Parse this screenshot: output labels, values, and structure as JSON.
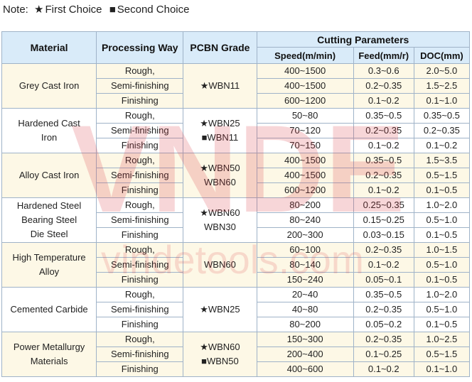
{
  "legend": {
    "prefix": "Note:",
    "first_symbol": "★",
    "first_label": "First Choice",
    "second_symbol": "■",
    "second_label": "Second Choice"
  },
  "watermark": {
    "logo_text": "VNDE",
    "url_text": "vindetools.com",
    "color": "#d9343a"
  },
  "table": {
    "headers": {
      "material": "Material",
      "processing": "Processing Way",
      "grade": "PCBN Grade",
      "cutting": "Cutting Parameters",
      "speed": "Speed(m/min)",
      "feed": "Feed(mm/r)",
      "doc": "DOC(mm)"
    },
    "groups": [
      {
        "material": [
          "Grey Cast Iron"
        ],
        "grades": [
          "★WBN11"
        ],
        "rows": [
          {
            "proc": "Rough,",
            "speed": "400~1500",
            "feed": "0.3~0.6",
            "doc": "2.0~5.0"
          },
          {
            "proc": "Semi-finishing",
            "speed": "400~1500",
            "feed": "0.2~0.35",
            "doc": "1.5~2.5"
          },
          {
            "proc": "Finishing",
            "speed": "600~1200",
            "feed": "0.1~0.2",
            "doc": "0.1~1.0"
          }
        ]
      },
      {
        "material": [
          "Hardened Cast",
          "Iron"
        ],
        "grades": [
          "★WBN25",
          "■WBN11"
        ],
        "rows": [
          {
            "proc": "Rough,",
            "speed": "50~80",
            "feed": "0.35~0.5",
            "doc": "0.35~0.5"
          },
          {
            "proc": "Semi-finishing",
            "speed": "70~120",
            "feed": "0.2~0.35",
            "doc": "0.2~0.35"
          },
          {
            "proc": "Finishing",
            "speed": "70~150",
            "feed": "0.1~0.2",
            "doc": "0.1~0.2"
          }
        ]
      },
      {
        "material": [
          "Alloy Cast Iron"
        ],
        "grades": [
          "★WBN50",
          "WBN60"
        ],
        "rows": [
          {
            "proc": "Rough,",
            "speed": "400~1500",
            "feed": "0.35~0.5",
            "doc": "1.5~3.5"
          },
          {
            "proc": "Semi-finishing",
            "speed": "400~1500",
            "feed": "0.2~0.35",
            "doc": "0.5~1.5"
          },
          {
            "proc": "Finishing",
            "speed": "600~1200",
            "feed": "0.1~0.2",
            "doc": "0.1~0.5"
          }
        ]
      },
      {
        "material": [
          "Hardened Steel",
          "Bearing Steel",
          "Die Steel"
        ],
        "grades": [
          "★WBN60",
          "WBN30"
        ],
        "rows": [
          {
            "proc": "Rough,",
            "speed": "80~200",
            "feed": "0.25~0.35",
            "doc": "1.0~2.0"
          },
          {
            "proc": "Semi-finishing",
            "speed": "80~240",
            "feed": "0.15~0.25",
            "doc": "0.5~1.0"
          },
          {
            "proc": "Finishing",
            "speed": "200~300",
            "feed": "0.03~0.15",
            "doc": "0.1~0.5"
          }
        ]
      },
      {
        "material": [
          "High Temperature",
          "Alloy"
        ],
        "grades": [
          "WBN60"
        ],
        "rows": [
          {
            "proc": "Rough,",
            "speed": "60~100",
            "feed": "0.2~0.35",
            "doc": "1.0~1.5"
          },
          {
            "proc": "Semi-finishing",
            "speed": "80~140",
            "feed": "0.1~0.2",
            "doc": "0.5~1.0"
          },
          {
            "proc": "Finishing",
            "speed": "150~240",
            "feed": "0.05~0.1",
            "doc": "0.1~0.5"
          }
        ]
      },
      {
        "material": [
          "Cemented Carbide"
        ],
        "grades": [
          "★WBN25"
        ],
        "rows": [
          {
            "proc": "Rough,",
            "speed": "20~40",
            "feed": "0.35~0.5",
            "doc": "1.0~2.0"
          },
          {
            "proc": "Semi-finishing",
            "speed": "40~80",
            "feed": "0.2~0.35",
            "doc": "0.5~1.0"
          },
          {
            "proc": "Finishing",
            "speed": "80~200",
            "feed": "0.05~0.2",
            "doc": "0.1~0.5"
          }
        ]
      },
      {
        "material": [
          "Power Metallurgy",
          "Materials"
        ],
        "grades": [
          "★WBN60",
          "■WBN50"
        ],
        "rows": [
          {
            "proc": "Rough,",
            "speed": "150~300",
            "feed": "0.2~0.35",
            "doc": "1.0~2.5"
          },
          {
            "proc": "Semi-finishing",
            "speed": "200~400",
            "feed": "0.1~0.25",
            "doc": "0.5~1.5"
          },
          {
            "proc": "Finishing",
            "speed": "400~600",
            "feed": "0.1~0.2",
            "doc": "0.1~1.0"
          }
        ]
      }
    ]
  }
}
